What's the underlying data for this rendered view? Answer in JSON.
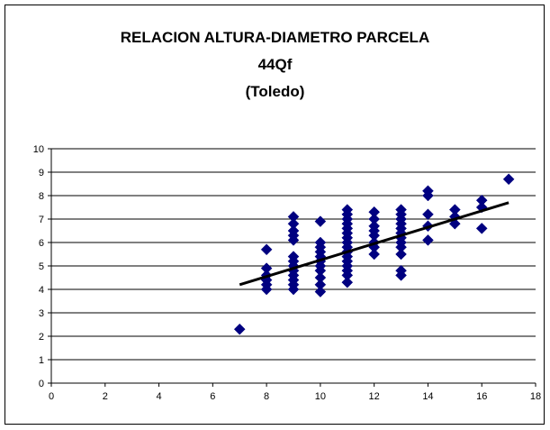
{
  "chart_data": {
    "type": "scatter",
    "title": [
      "RELACION ALTURA-DIAMETRO PARCELA",
      "44Qf",
      "(Toledo)"
    ],
    "xlabel": "",
    "ylabel": "",
    "xlim": [
      0,
      18
    ],
    "ylim": [
      0,
      10
    ],
    "x_ticks": [
      "0",
      "2",
      "4",
      "6",
      "8",
      "10",
      "12",
      "14",
      "16",
      "18"
    ],
    "y_ticks": [
      "0",
      "1",
      "2",
      "3",
      "4",
      "5",
      "6",
      "7",
      "8",
      "9",
      "10"
    ],
    "grid": "horizontal",
    "marker": "diamond",
    "colors": {
      "marker": "#000080",
      "trend": "#000000",
      "grid": "#000000"
    },
    "series": [
      {
        "points": [
          [
            7,
            2.3
          ],
          [
            8,
            4.0
          ],
          [
            8,
            4.2
          ],
          [
            8,
            4.4
          ],
          [
            8,
            4.6
          ],
          [
            8,
            4.9
          ],
          [
            8,
            5.7
          ],
          [
            9,
            4.0
          ],
          [
            9,
            4.2
          ],
          [
            9,
            4.4
          ],
          [
            9,
            4.6
          ],
          [
            9,
            4.8
          ],
          [
            9,
            5.0
          ],
          [
            9,
            5.2
          ],
          [
            9,
            5.4
          ],
          [
            9,
            6.1
          ],
          [
            9,
            6.3
          ],
          [
            9,
            6.5
          ],
          [
            9,
            6.8
          ],
          [
            9,
            7.1
          ],
          [
            10,
            3.9
          ],
          [
            10,
            4.2
          ],
          [
            10,
            4.5
          ],
          [
            10,
            4.8
          ],
          [
            10,
            5.0
          ],
          [
            10,
            5.2
          ],
          [
            10,
            5.4
          ],
          [
            10,
            5.6
          ],
          [
            10,
            5.8
          ],
          [
            10,
            6.0
          ],
          [
            10,
            6.9
          ],
          [
            11,
            4.3
          ],
          [
            11,
            4.6
          ],
          [
            11,
            4.8
          ],
          [
            11,
            5.0
          ],
          [
            11,
            5.2
          ],
          [
            11,
            5.4
          ],
          [
            11,
            5.6
          ],
          [
            11,
            5.8
          ],
          [
            11,
            6.0
          ],
          [
            11,
            6.2
          ],
          [
            11,
            6.4
          ],
          [
            11,
            6.6
          ],
          [
            11,
            6.8
          ],
          [
            11,
            7.0
          ],
          [
            11,
            7.2
          ],
          [
            11,
            7.4
          ],
          [
            12,
            5.5
          ],
          [
            12,
            5.8
          ],
          [
            12,
            6.0
          ],
          [
            12,
            6.3
          ],
          [
            12,
            6.5
          ],
          [
            12,
            6.7
          ],
          [
            12,
            7.0
          ],
          [
            12,
            7.3
          ],
          [
            13,
            4.6
          ],
          [
            13,
            4.8
          ],
          [
            13,
            5.5
          ],
          [
            13,
            5.8
          ],
          [
            13,
            6.0
          ],
          [
            13,
            6.2
          ],
          [
            13,
            6.4
          ],
          [
            13,
            6.6
          ],
          [
            13,
            6.8
          ],
          [
            13,
            7.0
          ],
          [
            13,
            7.2
          ],
          [
            13,
            7.4
          ],
          [
            14,
            6.1
          ],
          [
            14,
            6.7
          ],
          [
            14,
            7.2
          ],
          [
            14,
            8.0
          ],
          [
            14,
            8.2
          ],
          [
            15,
            6.8
          ],
          [
            15,
            7.1
          ],
          [
            15,
            7.4
          ],
          [
            16,
            6.6
          ],
          [
            16,
            7.5
          ],
          [
            16,
            7.8
          ],
          [
            17,
            8.7
          ]
        ]
      }
    ],
    "trendline": {
      "x": [
        7,
        17
      ],
      "y": [
        4.2,
        7.7
      ]
    }
  }
}
